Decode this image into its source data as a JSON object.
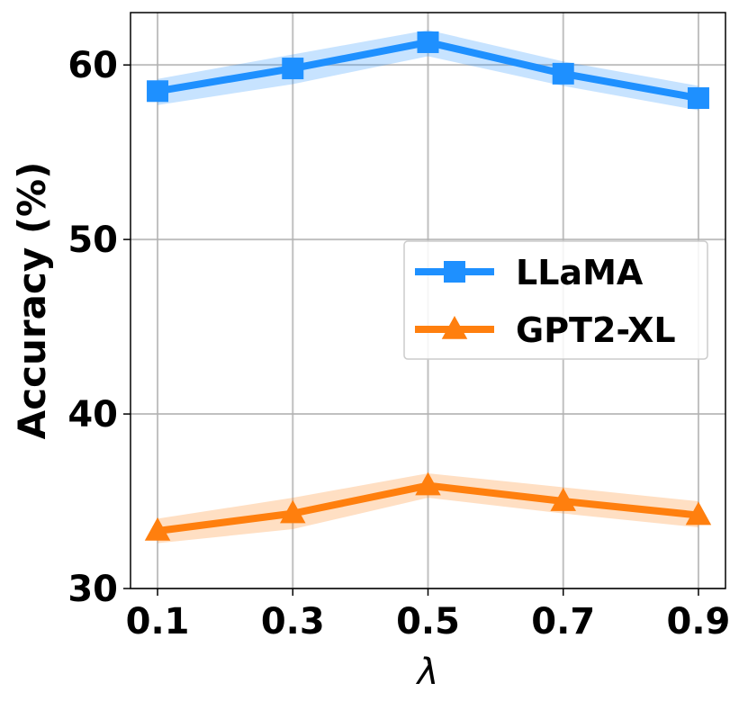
{
  "chart_data": {
    "type": "line",
    "x": [
      0.1,
      0.3,
      0.5,
      0.7,
      0.9
    ],
    "x_tick_labels": [
      "0.1",
      "0.3",
      "0.5",
      "0.7",
      "0.9"
    ],
    "y_ticks": [
      30,
      40,
      50,
      60
    ],
    "y_tick_labels": [
      "30",
      "40",
      "50",
      "60"
    ],
    "xlabel": "λ",
    "ylabel": "Accuracy (%)",
    "xlim": [
      0.06,
      0.94
    ],
    "ylim": [
      30,
      63
    ],
    "grid": true,
    "legend_position": "center-right",
    "series": [
      {
        "name": "LLaMA",
        "values": [
          58.5,
          59.8,
          61.3,
          59.5,
          58.1
        ],
        "lower": [
          57.7,
          58.9,
          60.5,
          58.8,
          57.4
        ],
        "upper": [
          59.2,
          60.6,
          62.0,
          60.2,
          58.8
        ],
        "marker": "square",
        "color": "#1E90FF"
      },
      {
        "name": "GPT2-XL",
        "values": [
          33.3,
          34.3,
          35.9,
          35.0,
          34.2
        ],
        "lower": [
          32.6,
          33.4,
          35.2,
          34.3,
          33.5
        ],
        "upper": [
          34.0,
          35.2,
          36.6,
          35.8,
          35.0
        ],
        "marker": "triangle",
        "color": "#FF7F0E"
      }
    ]
  }
}
